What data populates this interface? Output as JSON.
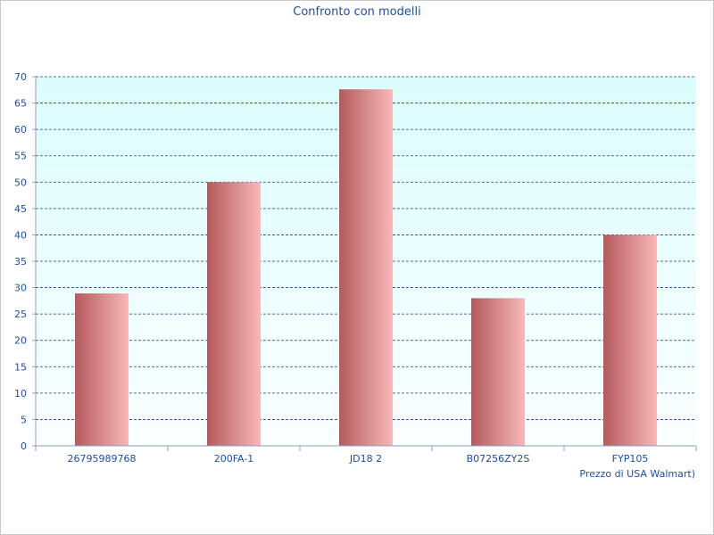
{
  "chart_data": {
    "type": "bar",
    "title": "Confronto con modelli",
    "xlabel": "Prezzo di USA Walmart)",
    "ylabel": "",
    "categories": [
      "26795989768",
      "200FA-1",
      "JD18 2",
      "B07256ZY2S",
      "FYP105"
    ],
    "values": [
      28.9,
      50.0,
      67.6,
      28.0,
      40.0
    ],
    "ylim": [
      0,
      70
    ],
    "ytick_step": 5,
    "grid": true,
    "legend": "none",
    "colors": {
      "bar_dark": "#b55a5c",
      "bar_light": "#f8b8b9",
      "plot_bg_top": "#dcfdfd",
      "plot_bg_bottom": "#fafefe",
      "grid": "#1f3f8f",
      "text": "#1f4fa0"
    }
  }
}
